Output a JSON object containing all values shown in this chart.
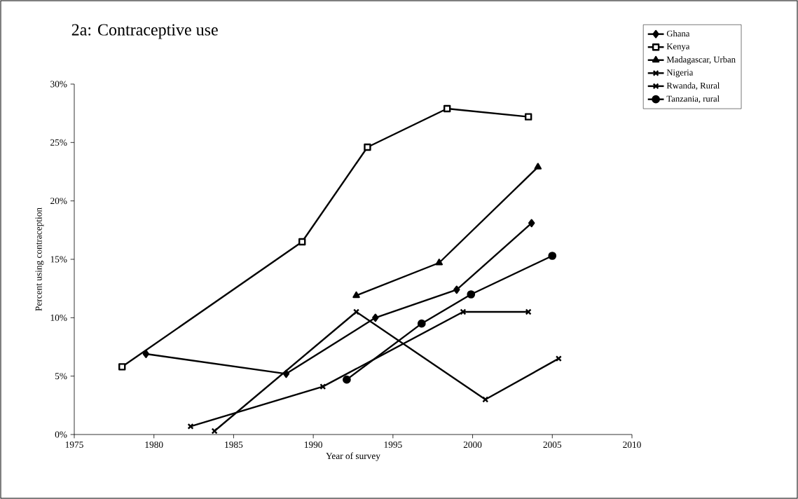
{
  "chart_data": {
    "type": "line",
    "title": "2a: Contraceptive use",
    "xlabel": "Year of survey",
    "ylabel": "Percent using contraception",
    "xlim": [
      1975,
      2010
    ],
    "xticks": [
      1975,
      1980,
      1985,
      1990,
      1995,
      2000,
      2005,
      2010
    ],
    "ylim": [
      0,
      30
    ],
    "yticks": [
      {
        "value": 0,
        "label": "0%"
      },
      {
        "value": 5,
        "label": "5%"
      },
      {
        "value": 10,
        "label": "10%"
      },
      {
        "value": 15,
        "label": "15%"
      },
      {
        "value": 20,
        "label": "20%"
      },
      {
        "value": 25,
        "label": "25%"
      },
      {
        "value": 30,
        "label": "30%"
      }
    ],
    "grid": false,
    "legend": "top right",
    "line_style": "solid",
    "series": [
      {
        "name": "Ghana",
        "color": "#000000",
        "marker": "diamond",
        "x": [
          1979.5,
          1988.3,
          1993.9,
          1999.0,
          2003.7
        ],
        "values": [
          6.9,
          5.2,
          10.0,
          12.4,
          18.1
        ]
      },
      {
        "name": "Kenya",
        "color": "#000000",
        "marker": "square",
        "x": [
          1978.0,
          1989.3,
          1993.4,
          1998.4,
          2003.5
        ],
        "values": [
          5.8,
          16.5,
          24.6,
          27.9,
          27.2
        ]
      },
      {
        "name": "Madagascar, Urban",
        "color": "#000000",
        "marker": "triangle",
        "x": [
          1992.7,
          1997.9,
          2004.1
        ],
        "values": [
          11.9,
          14.7,
          22.9
        ]
      },
      {
        "name": "Nigeria",
        "color": "#000000",
        "marker": "cross",
        "x": [
          1982.3,
          1990.6,
          1999.4,
          2003.5
        ],
        "values": [
          0.7,
          4.1,
          10.5,
          10.5
        ]
      },
      {
        "name": "Rwanda, Rural",
        "color": "#000000",
        "marker": "cross",
        "x": [
          1983.8,
          1992.7,
          2000.8,
          2005.4
        ],
        "values": [
          0.3,
          10.5,
          3.0,
          6.5
        ]
      },
      {
        "name": "Tanzania, rural",
        "color": "#000000",
        "marker": "circle",
        "x": [
          1992.1,
          1996.8,
          1999.9,
          2005.0
        ],
        "values": [
          4.7,
          9.5,
          12.0,
          15.3
        ]
      }
    ]
  }
}
